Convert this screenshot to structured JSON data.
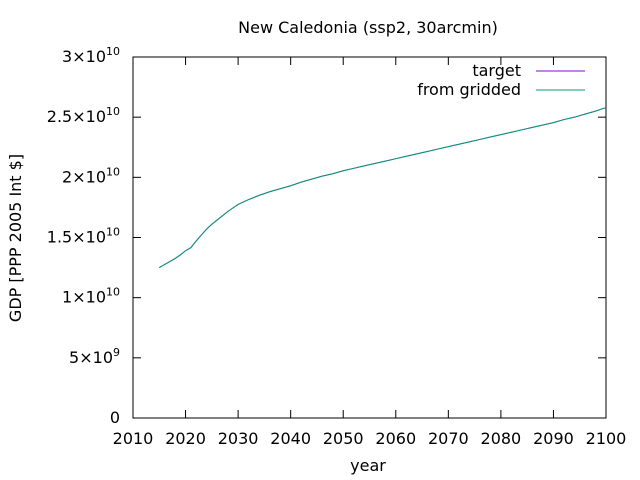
{
  "chart_data": {
    "type": "line",
    "title": "New Caledonia (ssp2, 30arcmin)",
    "xlabel": "year",
    "ylabel": "GDP [PPP 2005 Int $]",
    "xlim": [
      2010,
      2100
    ],
    "ylim": [
      0,
      30000000000
    ],
    "x_ticks": [
      "2010",
      "2020",
      "2030",
      "2040",
      "2050",
      "2060",
      "2070",
      "2080",
      "2090",
      "2100"
    ],
    "y_ticks": [
      {
        "value": 0,
        "mantissa": "0",
        "exp": ""
      },
      {
        "value": 5000000000,
        "mantissa": "5×10",
        "exp": "9"
      },
      {
        "value": 10000000000,
        "mantissa": "1×10",
        "exp": "10"
      },
      {
        "value": 15000000000,
        "mantissa": "1.5×10",
        "exp": "10"
      },
      {
        "value": 20000000000,
        "mantissa": "2×10",
        "exp": "10"
      },
      {
        "value": 25000000000,
        "mantissa": "2.5×10",
        "exp": "10"
      },
      {
        "value": 30000000000,
        "mantissa": "3×10",
        "exp": "10"
      }
    ],
    "grid": false,
    "legend_position": "top-right",
    "series": [
      {
        "name": "target",
        "color": "#9400d3",
        "x": [
          2015,
          2016,
          2017,
          2018,
          2019,
          2020,
          2021,
          2022,
          2023,
          2024,
          2025,
          2026,
          2027,
          2028,
          2029,
          2030,
          2032,
          2034,
          2036,
          2038,
          2040,
          2042,
          2044,
          2046,
          2048,
          2050,
          2052,
          2054,
          2056,
          2058,
          2060,
          2062,
          2064,
          2066,
          2068,
          2070,
          2072,
          2074,
          2076,
          2078,
          2080,
          2082,
          2084,
          2086,
          2088,
          2090,
          2092,
          2094,
          2096,
          2098,
          2100
        ],
        "y": [
          12500000000,
          12750000000,
          13000000000,
          13250000000,
          13550000000,
          13900000000,
          14150000000,
          14700000000,
          15200000000,
          15700000000,
          16100000000,
          16450000000,
          16800000000,
          17150000000,
          17450000000,
          17750000000,
          18150000000,
          18500000000,
          18800000000,
          19050000000,
          19300000000,
          19600000000,
          19850000000,
          20100000000,
          20300000000,
          20550000000,
          20750000000,
          20950000000,
          21150000000,
          21350000000,
          21550000000,
          21750000000,
          21950000000,
          22150000000,
          22350000000,
          22550000000,
          22750000000,
          22950000000,
          23150000000,
          23350000000,
          23550000000,
          23750000000,
          23950000000,
          24150000000,
          24350000000,
          24550000000,
          24800000000,
          25000000000,
          25250000000,
          25500000000,
          25800000000
        ]
      },
      {
        "name": "from gridded",
        "color": "#009e73",
        "x": [
          2015,
          2016,
          2017,
          2018,
          2019,
          2020,
          2021,
          2022,
          2023,
          2024,
          2025,
          2026,
          2027,
          2028,
          2029,
          2030,
          2032,
          2034,
          2036,
          2038,
          2040,
          2042,
          2044,
          2046,
          2048,
          2050,
          2052,
          2054,
          2056,
          2058,
          2060,
          2062,
          2064,
          2066,
          2068,
          2070,
          2072,
          2074,
          2076,
          2078,
          2080,
          2082,
          2084,
          2086,
          2088,
          2090,
          2092,
          2094,
          2096,
          2098,
          2100
        ],
        "y": [
          12500000000,
          12750000000,
          13000000000,
          13250000000,
          13550000000,
          13900000000,
          14150000000,
          14700000000,
          15200000000,
          15700000000,
          16100000000,
          16450000000,
          16800000000,
          17150000000,
          17450000000,
          17750000000,
          18150000000,
          18500000000,
          18800000000,
          19050000000,
          19300000000,
          19600000000,
          19850000000,
          20100000000,
          20300000000,
          20550000000,
          20750000000,
          20950000000,
          21150000000,
          21350000000,
          21550000000,
          21750000000,
          21950000000,
          22150000000,
          22350000000,
          22550000000,
          22750000000,
          22950000000,
          23150000000,
          23350000000,
          23550000000,
          23750000000,
          23950000000,
          24150000000,
          24350000000,
          24550000000,
          24800000000,
          25000000000,
          25250000000,
          25500000000,
          25800000000
        ]
      }
    ]
  }
}
